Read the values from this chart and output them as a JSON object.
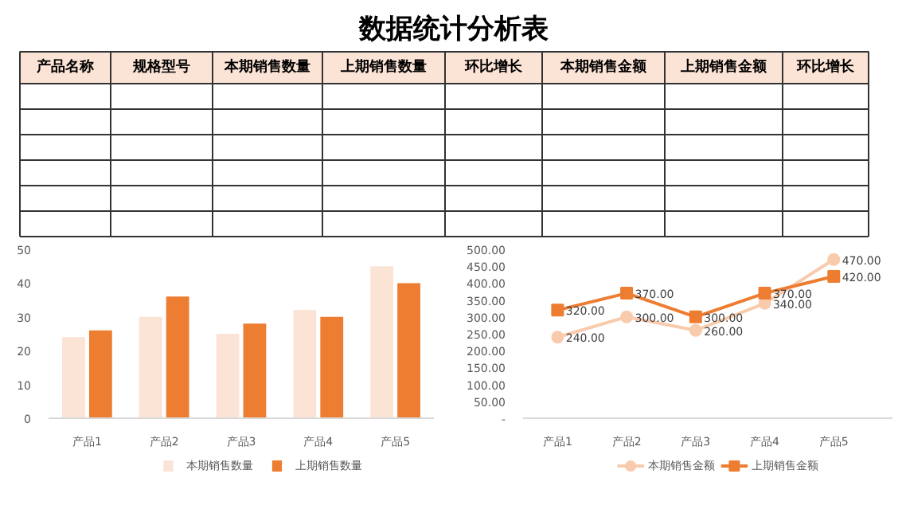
{
  "chart_data": [
    {
      "type": "other",
      "title": "数据统计分析表",
      "annotations": [
        "产品名称",
        "规格型号",
        "本期销售数量",
        "上期销售数量",
        "环比增长",
        "本期销售金额",
        "上期销售金额",
        "环比增长"
      ]
    },
    {
      "type": "bar",
      "categories": [
        "产品1",
        "产品2",
        "产品3",
        "产品4",
        "产品5"
      ],
      "ylim": [
        0,
        50
      ],
      "yticks": [
        0,
        10,
        20,
        30,
        40,
        50
      ],
      "grid": false,
      "legend": "bottom",
      "series": [
        {
          "name": "本期销售数量",
          "color": "#fbe3d6",
          "values": [
            24,
            30,
            25,
            32,
            45
          ]
        },
        {
          "name": "上期销售数量",
          "color": "#ed7d31",
          "values": [
            26,
            36,
            28,
            30,
            40
          ]
        }
      ]
    },
    {
      "type": "line",
      "categories": [
        "产品1",
        "产品2",
        "产品3",
        "产品4",
        "产品5"
      ],
      "ylim": [
        0,
        500
      ],
      "yticks": [
        {
          "value": 0,
          "label": "-"
        },
        {
          "value": 50,
          "label": "50.00"
        },
        {
          "value": 100,
          "label": "100.00"
        },
        {
          "value": 150,
          "label": "150.00"
        },
        {
          "value": 200,
          "label": "200.00"
        },
        {
          "value": 250,
          "label": "250.00"
        },
        {
          "value": 300,
          "label": "300.00"
        },
        {
          "value": 350,
          "label": "350.00"
        },
        {
          "value": 400,
          "label": "400.00"
        },
        {
          "value": 450,
          "label": "450.00"
        },
        {
          "value": 500,
          "label": "500.00"
        }
      ],
      "grid": false,
      "legend": "bottom",
      "series": [
        {
          "name": "本期销售金额",
          "color": "#f9cbad",
          "marker": "circle",
          "values": [
            240,
            300,
            260,
            340,
            470
          ],
          "value_labels": [
            "240.00",
            "300.00",
            "260.00",
            "340.00",
            "470.00"
          ]
        },
        {
          "name": "上期销售金额",
          "color": "#ed7d31",
          "marker": "square",
          "values": [
            320,
            370,
            300,
            370,
            420
          ],
          "value_labels": [
            "320.00",
            "370.00",
            "300.00",
            "370.00",
            "420.00"
          ]
        }
      ]
    }
  ]
}
